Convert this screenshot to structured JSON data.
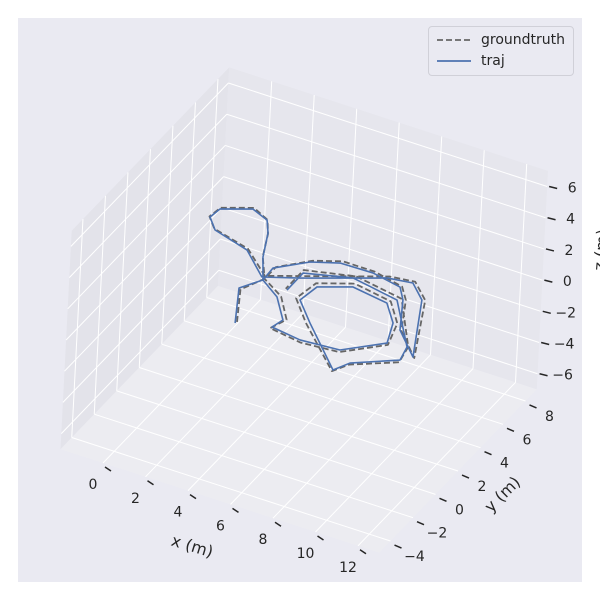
{
  "chart_data": {
    "type": "line3d",
    "xlabel": "x (m)",
    "ylabel": "y (m)",
    "zlabel": "z (m)",
    "xlim": [
      -2,
      13
    ],
    "ylim": [
      -5,
      9
    ],
    "zlim": [
      -7,
      7
    ],
    "xticks": [
      "0",
      "2",
      "4",
      "6",
      "8",
      "10",
      "12"
    ],
    "yticks": [
      "−4",
      "−2",
      "0",
      "2",
      "4",
      "6",
      "8"
    ],
    "zticks": [
      "−6",
      "−4",
      "−2",
      "0",
      "2",
      "4",
      "6"
    ],
    "grid": true,
    "legend_position": "top-right",
    "series": [
      {
        "name": "groundtruth",
        "color": "#666666",
        "style": "dashed",
        "points": [
          [
            3.5,
            -0.2,
            0
          ],
          [
            2.5,
            2.0,
            0
          ],
          [
            3.0,
            3.2,
            0
          ],
          [
            3.0,
            4.2,
            0
          ],
          [
            4.1,
            5.4,
            0
          ],
          [
            5.2,
            6.0,
            0
          ],
          [
            6.7,
            6.0,
            0
          ],
          [
            8.2,
            5.6,
            0
          ],
          [
            8.8,
            4.8,
            0
          ],
          [
            9.7,
            2.7,
            0
          ],
          [
            11.1,
            1.2,
            0
          ],
          [
            9.5,
            5.2,
            0
          ],
          [
            8.5,
            6.2,
            0
          ],
          [
            7.4,
            6.0,
            0
          ],
          [
            4.3,
            4.2,
            0
          ],
          [
            2.9,
            3.4,
            0
          ],
          [
            2.9,
            1.7,
            3
          ],
          [
            1.0,
            2.3,
            3
          ],
          [
            0.4,
            3.0,
            3
          ],
          [
            0.5,
            3.8,
            3
          ],
          [
            1.7,
            4.5,
            3
          ],
          [
            2.6,
            4.0,
            3
          ],
          [
            3.1,
            3.1,
            3
          ],
          [
            3.7,
            1.5,
            3
          ],
          [
            3.0,
            3.2,
            0
          ],
          [
            4.2,
            2.4,
            0
          ],
          [
            5.2,
            1.0,
            0
          ],
          [
            4.9,
            0.1,
            0
          ],
          [
            6.5,
            -0.2,
            0
          ],
          [
            8.2,
            0.0,
            0
          ],
          [
            9.7,
            1.5,
            0
          ],
          [
            9.3,
            3.1,
            0
          ],
          [
            8.3,
            4.4,
            0
          ],
          [
            6.4,
            4.8,
            0
          ],
          [
            5.0,
            4.0,
            0
          ],
          [
            4.8,
            2.6,
            0
          ],
          [
            6.0,
            1.2,
            0
          ],
          [
            8.6,
            -1.4,
            0
          ],
          [
            9.0,
            -0.6,
            0
          ],
          [
            10.7,
            0.6,
            0
          ],
          [
            10.5,
            1.8,
            0
          ],
          [
            8.6,
            4.8,
            0
          ],
          [
            6.2,
            5.3,
            0
          ],
          [
            4.1,
            4.6,
            0
          ],
          [
            4.1,
            3.0,
            0
          ]
        ]
      },
      {
        "name": "traj",
        "color": "#4c72b0",
        "style": "solid",
        "points": [
          [
            3.47,
            -0.31,
            0
          ],
          [
            2.4,
            2.06,
            0
          ],
          [
            2.98,
            3.09,
            0
          ],
          [
            2.93,
            4.08,
            0
          ],
          [
            4.05,
            5.26,
            0
          ],
          [
            5.16,
            5.83,
            0
          ],
          [
            6.68,
            5.88,
            0
          ],
          [
            8.14,
            5.53,
            0
          ],
          [
            8.69,
            4.75,
            0
          ],
          [
            9.62,
            2.73,
            0
          ],
          [
            11.02,
            1.24,
            0
          ],
          [
            9.37,
            5.15,
            0
          ],
          [
            8.46,
            6.07,
            0
          ],
          [
            7.36,
            5.85,
            0
          ],
          [
            4.24,
            4.0,
            0
          ],
          [
            2.84,
            3.26,
            0
          ],
          [
            2.91,
            1.6,
            3
          ],
          [
            1.07,
            2.23,
            3
          ],
          [
            0.44,
            2.97,
            3
          ],
          [
            0.52,
            3.71,
            3
          ],
          [
            1.7,
            4.4,
            3
          ],
          [
            2.59,
            3.98,
            3
          ],
          [
            3.07,
            3.16,
            3
          ],
          [
            3.72,
            1.48,
            3
          ],
          [
            2.98,
            3.09,
            0
          ],
          [
            4.07,
            2.28,
            0
          ],
          [
            5.08,
            0.9,
            0
          ],
          [
            4.93,
            0.21,
            0
          ],
          [
            6.38,
            -0.04,
            0
          ],
          [
            8.16,
            0.15,
            0
          ],
          [
            9.61,
            1.6,
            0
          ],
          [
            9.13,
            3.04,
            0
          ],
          [
            8.22,
            4.21,
            0
          ],
          [
            6.45,
            4.54,
            0
          ],
          [
            5.16,
            3.78,
            0
          ],
          [
            5.0,
            2.57,
            0
          ],
          [
            6.15,
            1.28,
            0
          ],
          [
            8.6,
            -1.3,
            0
          ],
          [
            8.97,
            -0.49,
            0
          ],
          [
            10.66,
            0.77,
            0
          ],
          [
            10.46,
            1.77,
            0
          ],
          [
            8.48,
            4.62,
            0
          ],
          [
            6.14,
            5.13,
            0
          ],
          [
            4.18,
            4.39,
            0
          ],
          [
            4.19,
            2.94,
            0
          ]
        ]
      }
    ]
  },
  "colors": {
    "axes_bg": "#eaeaf2",
    "pane_left": "#e3e3ea",
    "pane_right": "#e6e6ed",
    "floor": "#ececf1",
    "grid": "#ffffff"
  }
}
